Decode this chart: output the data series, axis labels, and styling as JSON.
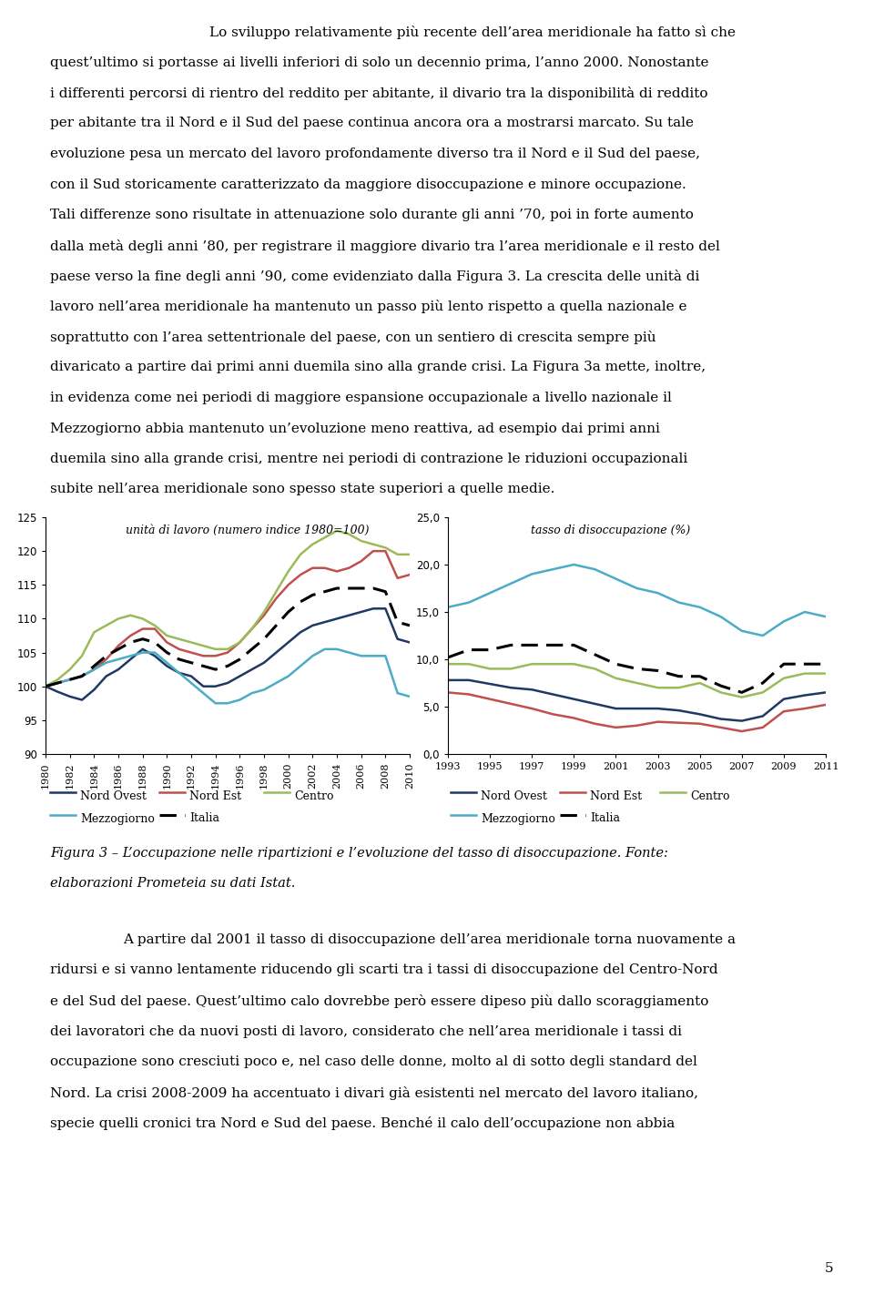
{
  "text_top": [
    "Lo sviluppo relativamente più recente dell’area meridionale ha fatto sì che",
    "quest’ultimo si portasse ai livelli inferiori di solo un decennio prima, l’anno 2000. Nonostante",
    "i differenti percorsi di rientro del reddito per abitante, il divario tra la disponibilità di reddito",
    "per abitante tra il Nord e il Sud del paese continua ancora ora a mostrarsi marcato. Su tale",
    "evoluzione pesa un mercato del lavoro profondamente diverso tra il Nord e il Sud del paese,",
    "con il Sud storicamente caratterizzato da maggiore disoccupazione e minore occupazione.",
    "Tali differenze sono risultate in attenuazione solo durante gli anni ’70, poi in forte aumento",
    "dalla metà degli anni ’80, per registrare il maggiore divario tra l’area meridionale e il resto del",
    "paese verso la fine degli anni ’90, come evidenziato dalla Figura 3. La crescita delle unità di",
    "lavoro nell’area meridionale ha mantenuto un passo più lento rispetto a quella nazionale e",
    "soprattutto con l’area settentrionale del paese, con un sentiero di crescita sempre più",
    "divaricato a partire dai primi anni duemila sino alla grande crisi. La Figura 3a mette, inoltre,",
    "in evidenza come nei periodi di maggiore espansione occupazionale a livello nazionale il",
    "Mezzogiorno abbia mantenuto un’evoluzione meno reattiva, ad esempio dai primi anni",
    "duemila sino alla grande crisi, mentre nei periodi di contrazione le riduzioni occupazionali",
    "subite nell’area meridionale sono spesso state superiori a quelle medie."
  ],
  "text_bottom_indent": "        A partire dal 2001 il tasso di disoccupazione dell’area meridionale torna nuovamente a",
  "text_bottom": [
    "ridursi e si vanno lentamente riducendo gli scarti tra i tassi di disoccupazione del Centro-Nord",
    "e del Sud del paese. Quest’ultimo calo dovrebbe però essere dipeso più dallo scoraggiamento",
    "dei lavoratori che da nuovi posti di lavoro, considerato che nell’area meridionale i tassi di",
    "occupazione sono cresciuti poco e, nel caso delle donne, molto al di sotto degli standard del",
    "Nord. La crisi 2008-2009 ha accentuato i divari già esistenti nel mercato del lavoro italiano,",
    "specie quelli cronici tra Nord e Sud del paese. Benché il calo dell’occupazione non abbia"
  ],
  "caption_line1": "Figura 3 – L’occupazione nelle ripartizioni e l’evoluzione del tasso di disoccupazione. Fonte:",
  "caption_line2": "elaborazioni Prometeia su dati Istat.",
  "page_number": "5",
  "left_chart": {
    "title": "unità di lavoro (numero indice 1980=100)",
    "years": [
      1980,
      1981,
      1982,
      1983,
      1984,
      1985,
      1986,
      1987,
      1988,
      1989,
      1990,
      1991,
      1992,
      1993,
      1994,
      1995,
      1996,
      1997,
      1998,
      1999,
      2000,
      2001,
      2002,
      2003,
      2004,
      2005,
      2006,
      2007,
      2008,
      2009,
      2010
    ],
    "nord_ovest": [
      100,
      99.2,
      98.5,
      98.0,
      99.5,
      101.5,
      102.5,
      104.0,
      105.5,
      104.5,
      103.0,
      102.0,
      101.5,
      100.0,
      100.0,
      100.5,
      101.5,
      102.5,
      103.5,
      105.0,
      106.5,
      108.0,
      109.0,
      109.5,
      110.0,
      110.5,
      111.0,
      111.5,
      111.5,
      107.0,
      106.5
    ],
    "nord_est": [
      100,
      100.5,
      101.0,
      101.5,
      102.5,
      104.0,
      106.0,
      107.5,
      108.5,
      108.5,
      106.5,
      105.5,
      105.0,
      104.5,
      104.5,
      105.0,
      106.5,
      108.5,
      110.5,
      113.0,
      115.0,
      116.5,
      117.5,
      117.5,
      117.0,
      117.5,
      118.5,
      120.0,
      120.0,
      116.0,
      116.5
    ],
    "centro": [
      100,
      101.0,
      102.5,
      104.5,
      108.0,
      109.0,
      110.0,
      110.5,
      110.0,
      109.0,
      107.5,
      107.0,
      106.5,
      106.0,
      105.5,
      105.5,
      106.5,
      108.5,
      111.0,
      114.0,
      117.0,
      119.5,
      121.0,
      122.0,
      123.0,
      122.5,
      121.5,
      121.0,
      120.5,
      119.5,
      119.5
    ],
    "mezzogiorno": [
      100,
      100.5,
      101.0,
      101.5,
      102.5,
      103.5,
      104.0,
      104.5,
      105.0,
      105.0,
      103.5,
      102.0,
      100.5,
      99.0,
      97.5,
      97.5,
      98.0,
      99.0,
      99.5,
      100.5,
      101.5,
      103.0,
      104.5,
      105.5,
      105.5,
      105.0,
      104.5,
      104.5,
      104.5,
      99.0,
      98.5
    ],
    "italia": [
      100,
      100.5,
      101.0,
      101.5,
      103.0,
      104.5,
      105.5,
      106.5,
      107.0,
      106.5,
      105.0,
      104.0,
      103.5,
      103.0,
      102.5,
      103.0,
      104.0,
      105.5,
      107.0,
      109.0,
      111.0,
      112.5,
      113.5,
      114.0,
      114.5,
      114.5,
      114.5,
      114.5,
      114.0,
      109.5,
      109.0
    ],
    "ylim": [
      90,
      125
    ],
    "yticks": [
      90,
      95,
      100,
      105,
      110,
      115,
      120,
      125
    ],
    "xticks": [
      1980,
      1982,
      1984,
      1986,
      1988,
      1990,
      1992,
      1994,
      1996,
      1998,
      2000,
      2002,
      2004,
      2006,
      2008,
      2010
    ],
    "colors": {
      "nord_ovest": "#1F3864",
      "nord_est": "#C0504D",
      "centro": "#9BBB59",
      "mezzogiorno": "#4BACC6",
      "italia": "#000000"
    }
  },
  "right_chart": {
    "title": "tasso di disoccupazione (%)",
    "years": [
      1993,
      1994,
      1995,
      1996,
      1997,
      1998,
      1999,
      2000,
      2001,
      2002,
      2003,
      2004,
      2005,
      2006,
      2007,
      2008,
      2009,
      2010,
      2011
    ],
    "nord_ovest": [
      7.8,
      7.8,
      7.4,
      7.0,
      6.8,
      6.3,
      5.8,
      5.3,
      4.8,
      4.8,
      4.8,
      4.6,
      4.2,
      3.7,
      3.5,
      4.0,
      5.8,
      6.2,
      6.5
    ],
    "nord_est": [
      6.5,
      6.3,
      5.8,
      5.3,
      4.8,
      4.2,
      3.8,
      3.2,
      2.8,
      3.0,
      3.4,
      3.3,
      3.2,
      2.8,
      2.4,
      2.8,
      4.5,
      4.8,
      5.2
    ],
    "centro": [
      9.5,
      9.5,
      9.0,
      9.0,
      9.5,
      9.5,
      9.5,
      9.0,
      8.0,
      7.5,
      7.0,
      7.0,
      7.5,
      6.5,
      6.0,
      6.5,
      8.0,
      8.5,
      8.5
    ],
    "mezzogiorno": [
      15.5,
      16.0,
      17.0,
      18.0,
      19.0,
      19.5,
      20.0,
      19.5,
      18.5,
      17.5,
      17.0,
      16.0,
      15.5,
      14.5,
      13.0,
      12.5,
      14.0,
      15.0,
      14.5
    ],
    "italia": [
      10.2,
      11.0,
      11.0,
      11.5,
      11.5,
      11.5,
      11.5,
      10.5,
      9.5,
      9.0,
      8.8,
      8.2,
      8.2,
      7.2,
      6.5,
      7.5,
      9.5,
      9.5,
      9.5
    ],
    "ylim": [
      0,
      25
    ],
    "yticks": [
      0.0,
      5.0,
      10.0,
      15.0,
      20.0,
      25.0
    ],
    "ytick_labels": [
      "0,0",
      "5,0",
      "10,0",
      "15,0",
      "20,0",
      "25,0"
    ],
    "xticks": [
      1993,
      1995,
      1997,
      1999,
      2001,
      2003,
      2005,
      2007,
      2009,
      2011
    ],
    "colors": {
      "nord_ovest": "#1F3864",
      "nord_est": "#C0504D",
      "centro": "#9BBB59",
      "mezzogiorno": "#4BACC6",
      "italia": "#000000"
    }
  },
  "background_color": "#FFFFFF",
  "text_color": "#000000"
}
